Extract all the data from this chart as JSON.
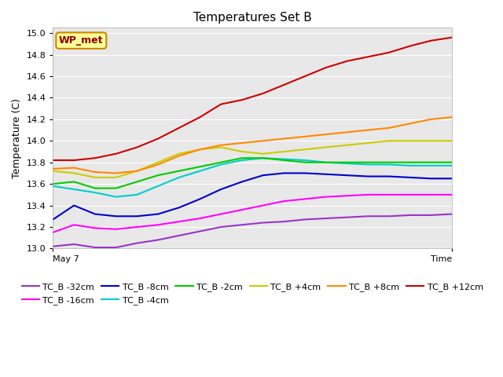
{
  "title": "Temperatures Set B",
  "ylabel": "Temperature (C)",
  "background_color": "#e8e8e8",
  "annotation_text": "WP_met",
  "annotation_bg": "#ffff99",
  "annotation_border": "#cc8800",
  "annotation_text_color": "#8b0000",
  "ylim": [
    13.0,
    15.05
  ],
  "yticks": [
    13.0,
    13.2,
    13.4,
    13.6,
    13.8,
    14.0,
    14.2,
    14.4,
    14.6,
    14.8,
    15.0
  ],
  "x_start_label": "May 7",
  "x_end_label": "Time",
  "legend_order": [
    "TC_B -32cm",
    "TC_B -16cm",
    "TC_B -8cm",
    "TC_B -4cm",
    "TC_B -2cm",
    "TC_B +4cm",
    "TC_B +8cm",
    "TC_B +12cm"
  ],
  "series": {
    "TC_B -32cm": {
      "color": "#9933cc",
      "lw": 1.5,
      "data": [
        13.02,
        13.04,
        13.01,
        13.01,
        13.05,
        13.08,
        13.12,
        13.16,
        13.2,
        13.22,
        13.24,
        13.25,
        13.27,
        13.28,
        13.29,
        13.3,
        13.3,
        13.31,
        13.31,
        13.32
      ]
    },
    "TC_B -16cm": {
      "color": "#ff00ff",
      "lw": 1.5,
      "data": [
        13.15,
        13.22,
        13.19,
        13.18,
        13.2,
        13.22,
        13.25,
        13.28,
        13.32,
        13.36,
        13.4,
        13.44,
        13.46,
        13.48,
        13.49,
        13.5,
        13.5,
        13.5,
        13.5,
        13.5
      ]
    },
    "TC_B -8cm": {
      "color": "#0000cc",
      "lw": 1.5,
      "data": [
        13.27,
        13.4,
        13.32,
        13.3,
        13.3,
        13.32,
        13.38,
        13.46,
        13.55,
        13.62,
        13.68,
        13.7,
        13.7,
        13.69,
        13.68,
        13.67,
        13.67,
        13.66,
        13.65,
        13.65
      ]
    },
    "TC_B -4cm": {
      "color": "#00cccc",
      "lw": 1.5,
      "data": [
        13.58,
        13.55,
        13.52,
        13.48,
        13.5,
        13.58,
        13.66,
        13.72,
        13.78,
        13.82,
        13.84,
        13.83,
        13.82,
        13.8,
        13.79,
        13.78,
        13.78,
        13.77,
        13.77,
        13.77
      ]
    },
    "TC_B -2cm": {
      "color": "#00cc00",
      "lw": 1.5,
      "data": [
        13.6,
        13.62,
        13.56,
        13.56,
        13.62,
        13.68,
        13.72,
        13.76,
        13.8,
        13.84,
        13.84,
        13.82,
        13.8,
        13.8,
        13.8,
        13.8,
        13.8,
        13.8,
        13.8,
        13.8
      ]
    },
    "TC_B +4cm": {
      "color": "#cccc00",
      "lw": 1.5,
      "data": [
        13.72,
        13.7,
        13.66,
        13.66,
        13.72,
        13.8,
        13.88,
        13.92,
        13.94,
        13.9,
        13.88,
        13.9,
        13.92,
        13.94,
        13.96,
        13.98,
        14.0,
        14.0,
        14.0,
        14.0
      ]
    },
    "TC_B +8cm": {
      "color": "#ff8800",
      "lw": 1.5,
      "data": [
        13.74,
        13.75,
        13.71,
        13.7,
        13.72,
        13.78,
        13.86,
        13.92,
        13.96,
        13.98,
        14.0,
        14.02,
        14.04,
        14.06,
        14.08,
        14.1,
        14.12,
        14.16,
        14.2,
        14.22
      ]
    },
    "TC_B +12cm": {
      "color": "#cc0000",
      "lw": 1.5,
      "data": [
        13.82,
        13.82,
        13.84,
        13.88,
        13.94,
        14.02,
        14.12,
        14.22,
        14.34,
        14.38,
        14.44,
        14.52,
        14.6,
        14.68,
        14.74,
        14.78,
        14.82,
        14.88,
        14.93,
        14.96
      ]
    }
  }
}
